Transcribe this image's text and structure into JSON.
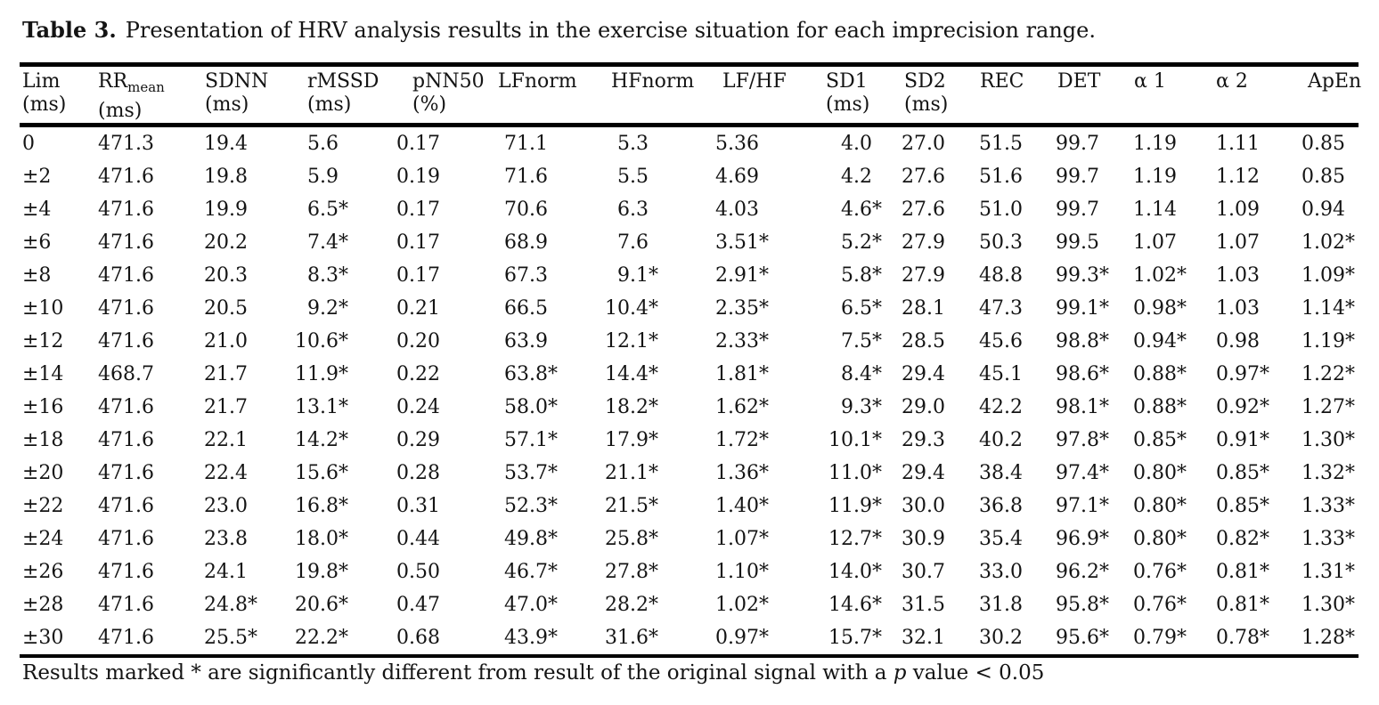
{
  "caption": {
    "label": "Table 3.",
    "text": "Presentation of HRV analysis results in the exercise situation for each imprecision range."
  },
  "table": {
    "headers": [
      {
        "name": "Lim",
        "sub": "",
        "unit": "(ms)"
      },
      {
        "name": "RR",
        "sub": "mean",
        "unit": "(ms)"
      },
      {
        "name": "SDNN",
        "sub": "",
        "unit": "(ms)"
      },
      {
        "name": "rMSSD",
        "sub": "",
        "unit": "(ms)"
      },
      {
        "name": "pNN50",
        "sub": "",
        "unit": "(%)"
      },
      {
        "name": "LFnorm",
        "sub": "",
        "unit": ""
      },
      {
        "name": "HFnorm",
        "sub": "",
        "unit": ""
      },
      {
        "name": "LF/HF",
        "sub": "",
        "unit": ""
      },
      {
        "name": "SD1",
        "sub": "",
        "unit": "(ms)"
      },
      {
        "name": "SD2",
        "sub": "",
        "unit": "(ms)"
      },
      {
        "name": "REC",
        "sub": "",
        "unit": ""
      },
      {
        "name": "DET",
        "sub": "",
        "unit": ""
      },
      {
        "name": "α 1",
        "sub": "",
        "unit": ""
      },
      {
        "name": "α 2",
        "sub": "",
        "unit": ""
      },
      {
        "name": "ApEn",
        "sub": "",
        "unit": ""
      }
    ],
    "rows": [
      [
        "0",
        "471.3",
        "19.4",
        "5.6",
        "0.17",
        "71.1",
        "5.3",
        "5.36",
        "4.0",
        "27.0",
        "51.5",
        "99.7",
        "1.19",
        "1.11",
        "0.85"
      ],
      [
        "±2",
        "471.6",
        "19.8",
        "5.9",
        "0.19",
        "71.6",
        "5.5",
        "4.69",
        "4.2",
        "27.6",
        "51.6",
        "99.7",
        "1.19",
        "1.12",
        "0.85"
      ],
      [
        "±4",
        "471.6",
        "19.9",
        "6.5*",
        "0.17",
        "70.6",
        "6.3",
        "4.03",
        "4.6*",
        "27.6",
        "51.0",
        "99.7",
        "1.14",
        "1.09",
        "0.94"
      ],
      [
        "±6",
        "471.6",
        "20.2",
        "7.4*",
        "0.17",
        "68.9",
        "7.6",
        "3.51*",
        "5.2*",
        "27.9",
        "50.3",
        "99.5",
        "1.07",
        "1.07",
        "1.02*"
      ],
      [
        "±8",
        "471.6",
        "20.3",
        "8.3*",
        "0.17",
        "67.3",
        "9.1*",
        "2.91*",
        "5.8*",
        "27.9",
        "48.8",
        "99.3*",
        "1.02*",
        "1.03",
        "1.09*"
      ],
      [
        "±10",
        "471.6",
        "20.5",
        "9.2*",
        "0.21",
        "66.5",
        "10.4*",
        "2.35*",
        "6.5*",
        "28.1",
        "47.3",
        "99.1*",
        "0.98*",
        "1.03",
        "1.14*"
      ],
      [
        "±12",
        "471.6",
        "21.0",
        "10.6*",
        "0.20",
        "63.9",
        "12.1*",
        "2.33*",
        "7.5*",
        "28.5",
        "45.6",
        "98.8*",
        "0.94*",
        "0.98",
        "1.19*"
      ],
      [
        "±14",
        "468.7",
        "21.7",
        "11.9*",
        "0.22",
        "63.8*",
        "14.4*",
        "1.81*",
        "8.4*",
        "29.4",
        "45.1",
        "98.6*",
        "0.88*",
        "0.97*",
        "1.22*"
      ],
      [
        "±16",
        "471.6",
        "21.7",
        "13.1*",
        "0.24",
        "58.0*",
        "18.2*",
        "1.62*",
        "9.3*",
        "29.0",
        "42.2",
        "98.1*",
        "0.88*",
        "0.92*",
        "1.27*"
      ],
      [
        "±18",
        "471.6",
        "22.1",
        "14.2*",
        "0.29",
        "57.1*",
        "17.9*",
        "1.72*",
        "10.1*",
        "29.3",
        "40.2",
        "97.8*",
        "0.85*",
        "0.91*",
        "1.30*"
      ],
      [
        "±20",
        "471.6",
        "22.4",
        "15.6*",
        "0.28",
        "53.7*",
        "21.1*",
        "1.36*",
        "11.0*",
        "29.4",
        "38.4",
        "97.4*",
        "0.80*",
        "0.85*",
        "1.32*"
      ],
      [
        "±22",
        "471.6",
        "23.0",
        "16.8*",
        "0.31",
        "52.3*",
        "21.5*",
        "1.40*",
        "11.9*",
        "30.0",
        "36.8",
        "97.1*",
        "0.80*",
        "0.85*",
        "1.33*"
      ],
      [
        "±24",
        "471.6",
        "23.8",
        "18.0*",
        "0.44",
        "49.8*",
        "25.8*",
        "1.07*",
        "12.7*",
        "30.9",
        "35.4",
        "96.9*",
        "0.80*",
        "0.82*",
        "1.33*"
      ],
      [
        "±26",
        "471.6",
        "24.1",
        "19.8*",
        "0.50",
        "46.7*",
        "27.8*",
        "1.10*",
        "14.0*",
        "30.7",
        "33.0",
        "96.2*",
        "0.76*",
        "0.81*",
        "1.31*"
      ],
      [
        "±28",
        "471.6",
        "24.8*",
        "20.6*",
        "0.47",
        "47.0*",
        "28.2*",
        "1.02*",
        "14.6*",
        "31.5",
        "31.8",
        "95.8*",
        "0.76*",
        "0.81*",
        "1.30*"
      ],
      [
        "±30",
        "471.6",
        "25.5*",
        "22.2*",
        "0.68",
        "43.9*",
        "31.6*",
        "0.97*",
        "15.7*",
        "32.1",
        "30.2",
        "95.6*",
        "0.79*",
        "0.78*",
        "1.28*"
      ]
    ]
  },
  "footnote": {
    "prefix": "Results marked * are significantly different from result of the original signal with a ",
    "italic": "p",
    "suffix": " value < 0.05"
  },
  "colors": {
    "text": "#141414",
    "rule": "#000000",
    "background": "#ffffff"
  }
}
